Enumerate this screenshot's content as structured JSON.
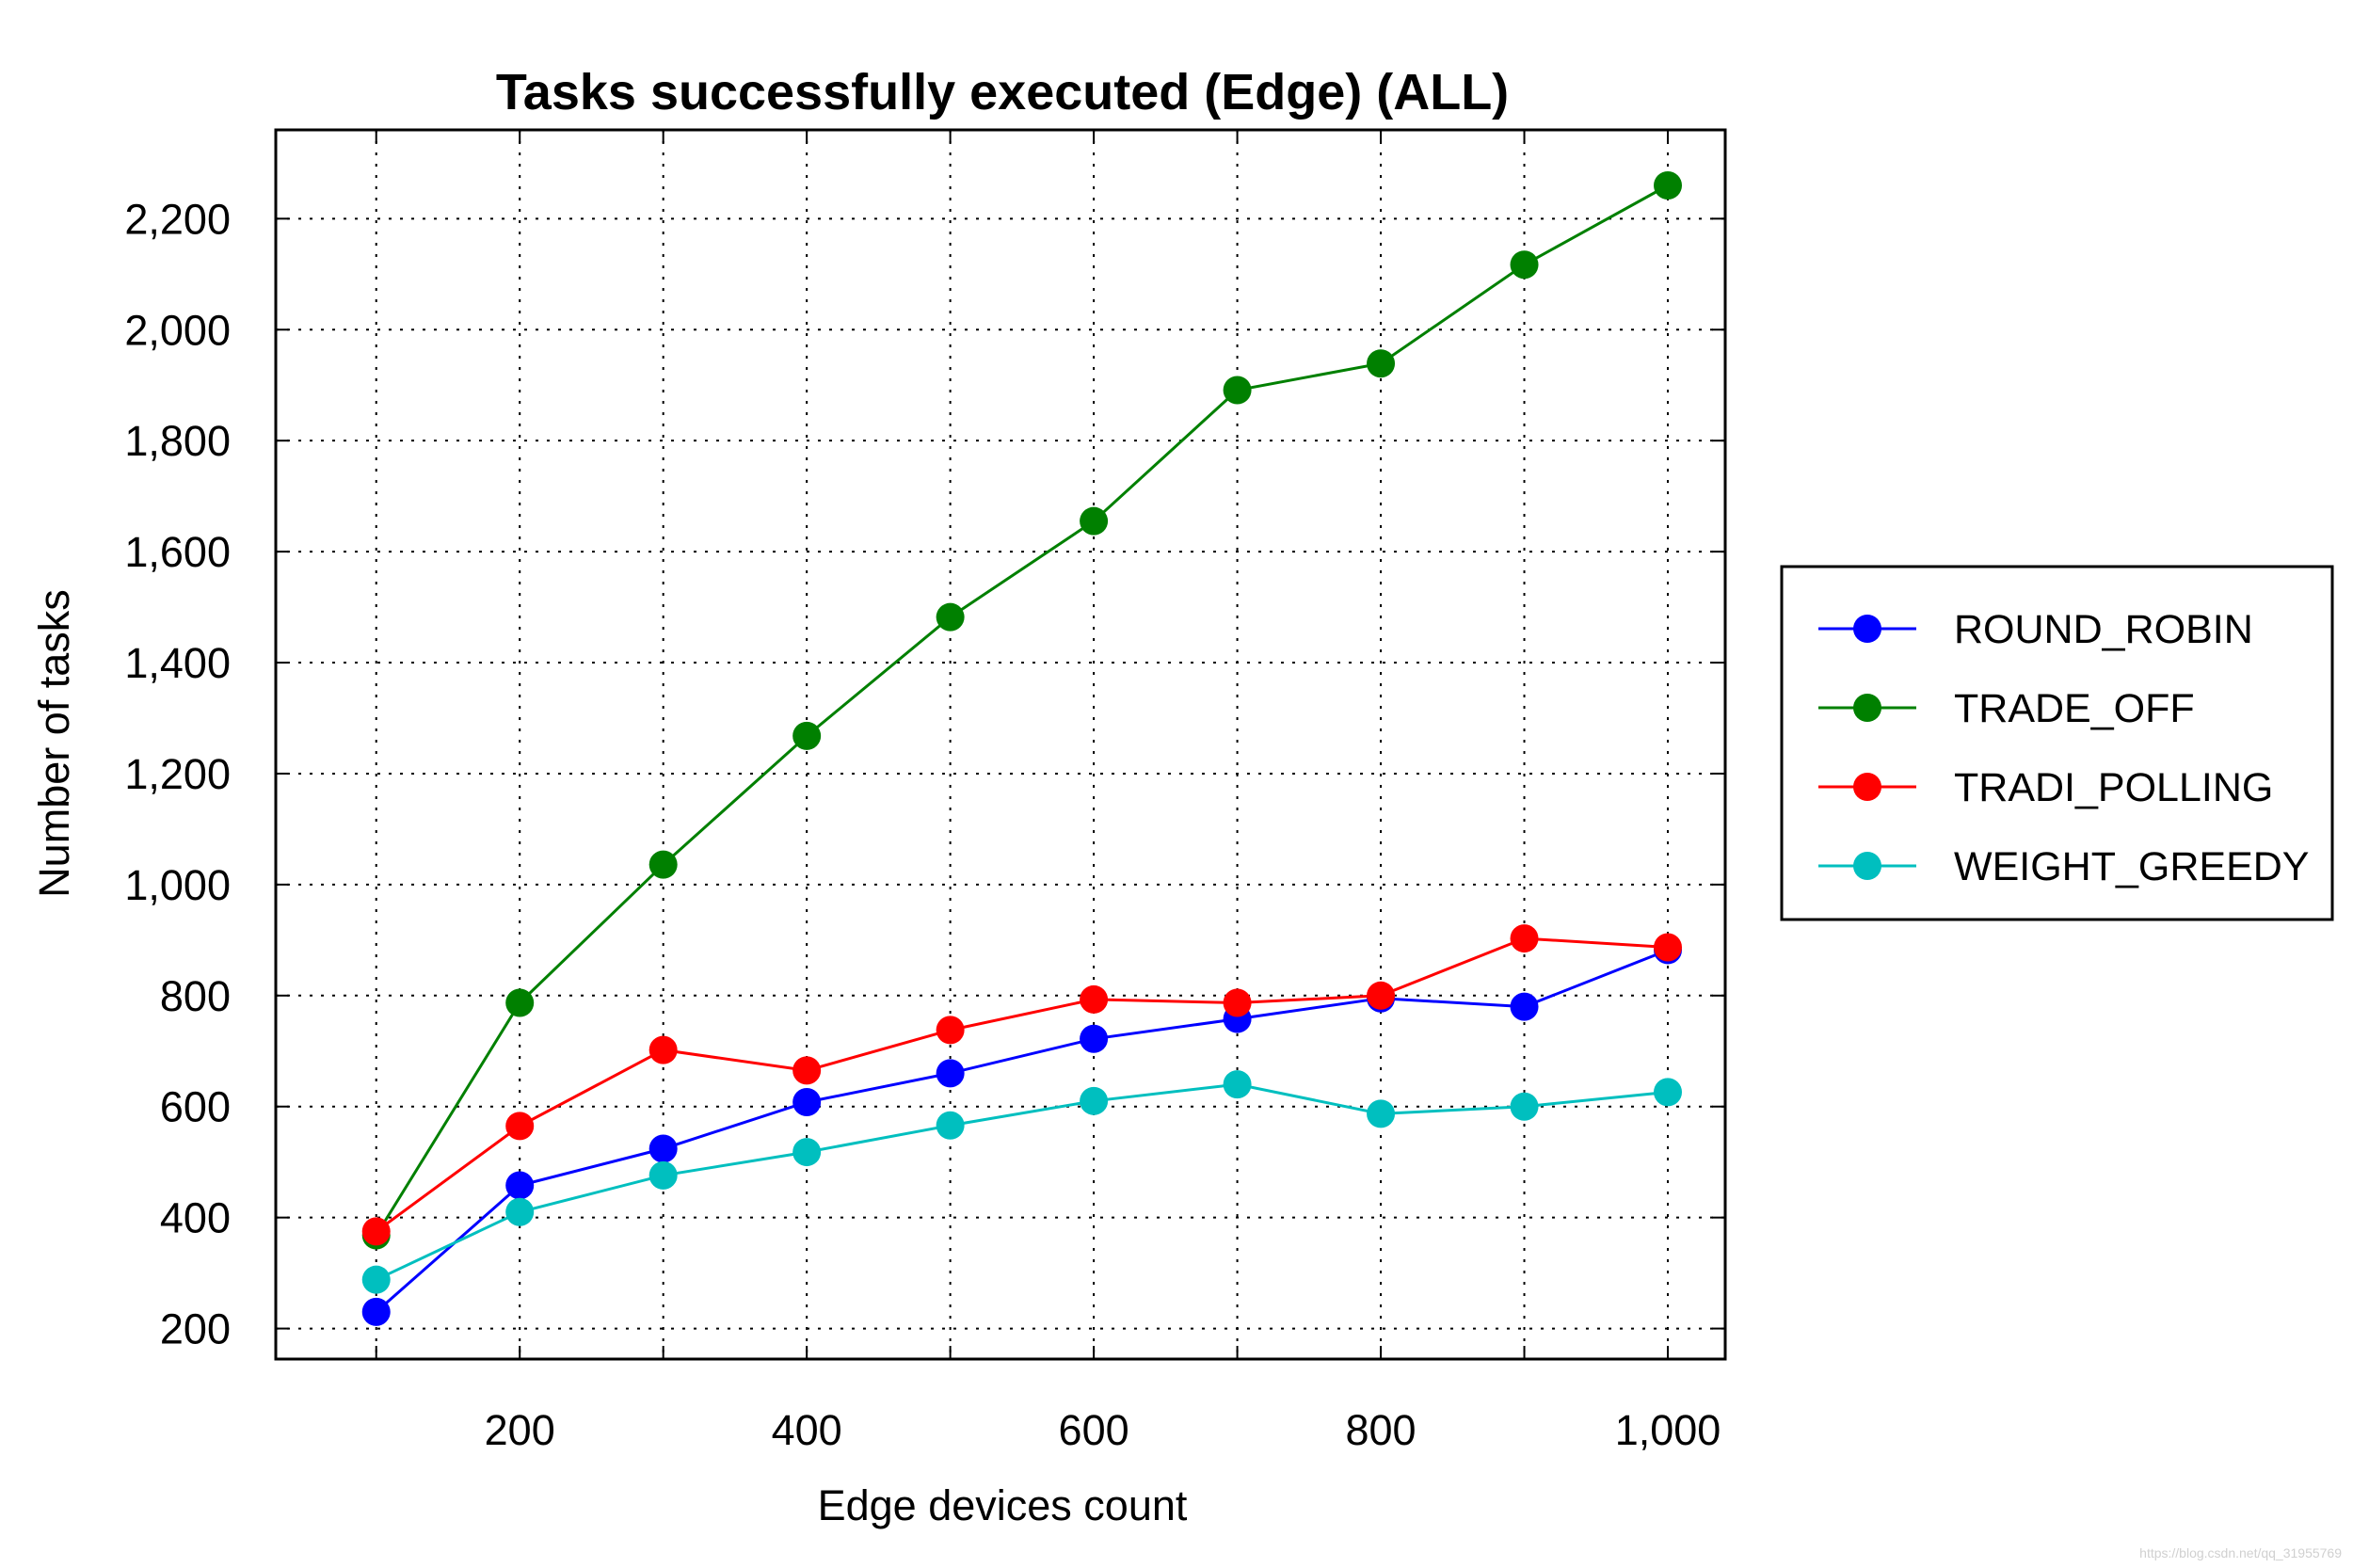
{
  "chart_data": {
    "type": "line",
    "title": "Tasks successfully executed (Edge) (ALL)",
    "xlabel": "Edge devices count",
    "ylabel": "Number of tasks",
    "x": [
      100,
      200,
      300,
      400,
      500,
      600,
      700,
      800,
      900,
      1000
    ],
    "xlim": [
      30,
      1040
    ],
    "ylim": [
      145,
      2360
    ],
    "x_ticks": [
      200,
      400,
      600,
      800,
      1000
    ],
    "x_tick_labels": [
      "200",
      "400",
      "600",
      "800",
      "1,000"
    ],
    "y_ticks": [
      200,
      400,
      600,
      800,
      1000,
      1200,
      1400,
      1600,
      1800,
      2000,
      2200
    ],
    "y_tick_labels": [
      "200",
      "400",
      "600",
      "800",
      "1,000",
      "1,200",
      "1,400",
      "1,600",
      "1,800",
      "2,000",
      "2,200"
    ],
    "grid": true,
    "legend_position": "right",
    "series": [
      {
        "name": "ROUND_ROBIN",
        "color": "#0000ff",
        "values": [
          230,
          458,
          524,
          608,
          660,
          722,
          758,
          795,
          780,
          882
        ]
      },
      {
        "name": "TRADE_OFF",
        "color": "#008000",
        "values": [
          368,
          787,
          1036,
          1268,
          1482,
          1655,
          1891,
          1939,
          2117,
          2260
        ]
      },
      {
        "name": "TRADI_POLLING",
        "color": "#ff0000",
        "values": [
          375,
          565,
          702,
          665,
          738,
          793,
          787,
          800,
          903,
          887
        ]
      },
      {
        "name": "WEIGHT_GREEDY",
        "color": "#00bfbf",
        "values": [
          288,
          410,
          476,
          518,
          566,
          610,
          640,
          587,
          600,
          626
        ]
      }
    ]
  },
  "watermark": "https://blog.csdn.net/qq_31955769"
}
